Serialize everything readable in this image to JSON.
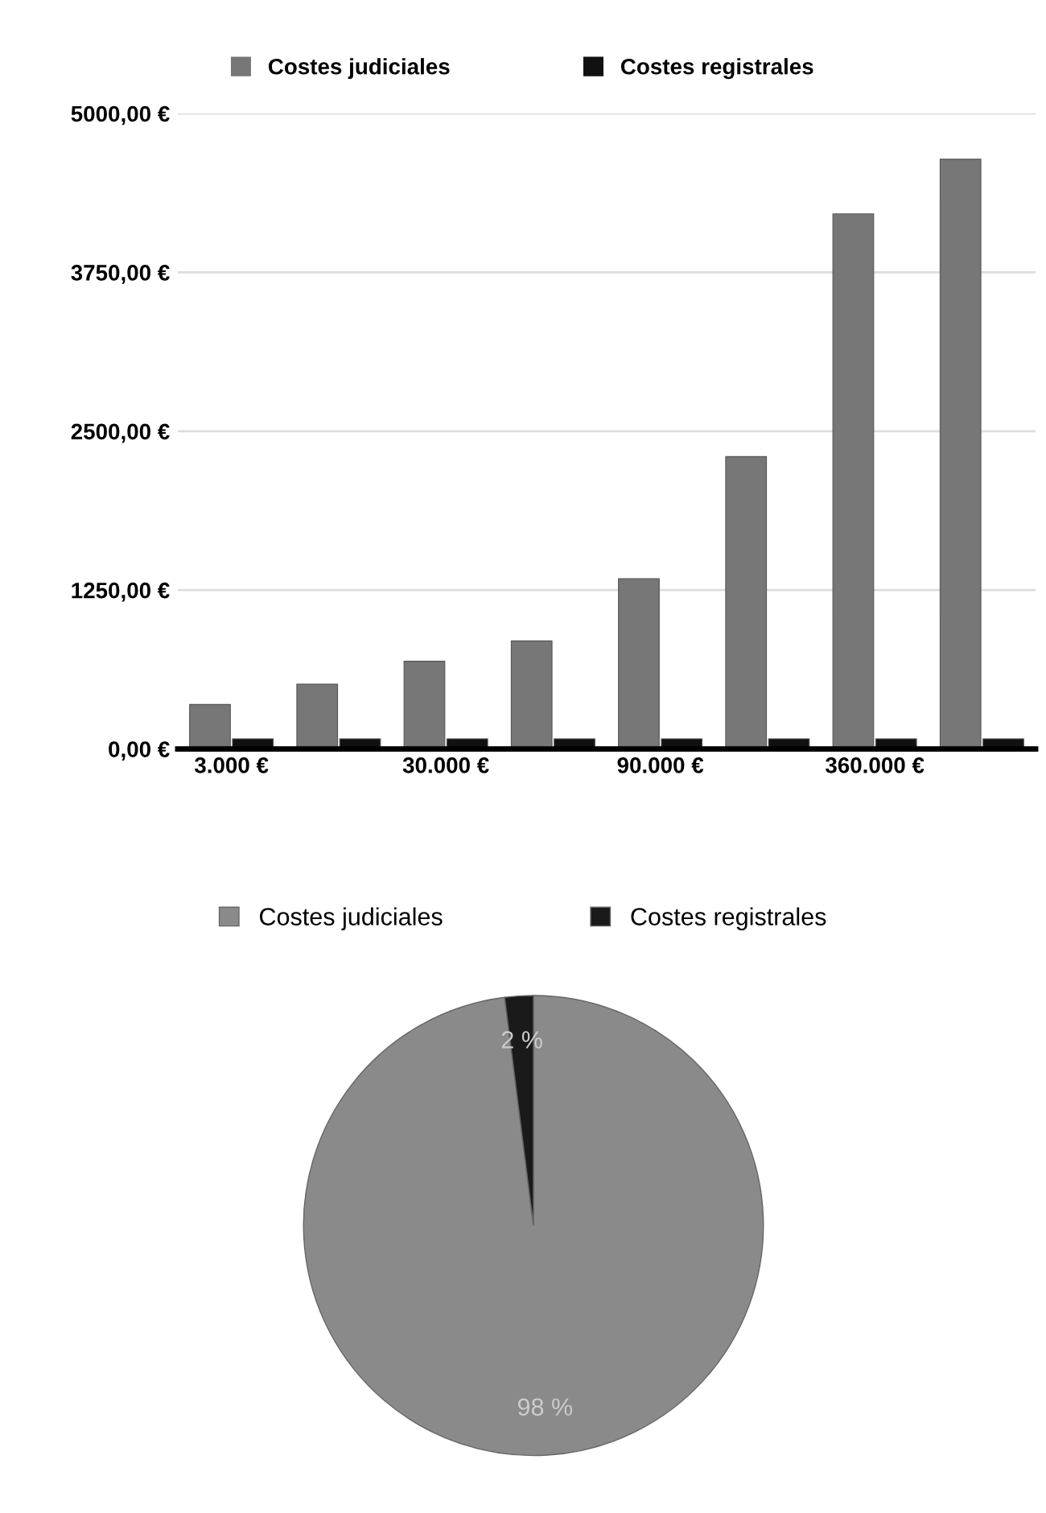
{
  "chart_data": [
    {
      "type": "bar",
      "categories": [
        "3.000 €",
        null,
        "30.000 €",
        null,
        "90.000 €",
        null,
        "360.000 €",
        null
      ],
      "series": [
        {
          "name": "Costes judiciales",
          "color": "#777777",
          "values": [
            350,
            510,
            690,
            850,
            1340,
            2300,
            4210,
            4640
          ]
        },
        {
          "name": "Costes registrales",
          "color": "#111111",
          "values": [
            80,
            80,
            80,
            80,
            80,
            80,
            80,
            80
          ]
        }
      ],
      "ylim": [
        0,
        5000
      ],
      "yticks": [
        {
          "value": 0,
          "label": "0,00 €"
        },
        {
          "value": 1250,
          "label": "1250,00 €"
        },
        {
          "value": 2500,
          "label": "2500,00 €"
        },
        {
          "value": 3750,
          "label": "3750,00 €"
        },
        {
          "value": 5000,
          "label": "5000,00 €"
        }
      ],
      "grid": "y",
      "legend": "top"
    },
    {
      "type": "pie",
      "categories": [
        "Costes judiciales",
        "Costes registrales"
      ],
      "values": [
        98,
        2
      ],
      "colors": [
        "#8a8a8a",
        "#1a1a1a"
      ],
      "value_labels": [
        "98 %",
        "2 %"
      ],
      "legend": "top"
    }
  ]
}
